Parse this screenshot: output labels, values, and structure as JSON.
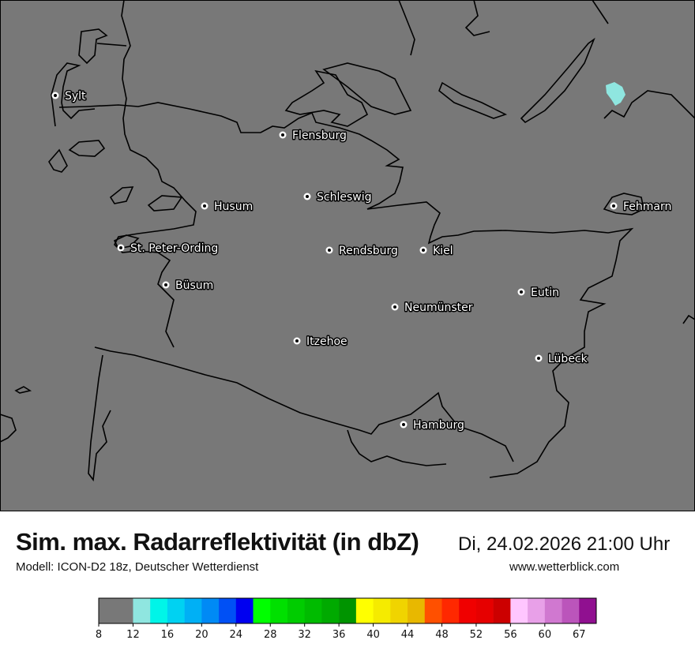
{
  "header": {
    "title": "Sim. max. Radarreflektivität (in dbZ)",
    "datetime": "Di, 24.02.2026 21:00 Uhr",
    "model": "Modell: ICON-D2 18z, Deutscher Wetterdienst",
    "website": "www.wetterblick.com"
  },
  "map": {
    "background_color": "#787878",
    "coast_color": "#000000",
    "cities": [
      {
        "name": "Sylt"
      },
      {
        "name": "Flensburg"
      },
      {
        "name": "Schleswig"
      },
      {
        "name": "Husum"
      },
      {
        "name": "Fehmarn"
      },
      {
        "name": "St. Peter-Ording"
      },
      {
        "name": "Rendsburg"
      },
      {
        "name": "Kiel"
      },
      {
        "name": "Büsum"
      },
      {
        "name": "Eutin"
      },
      {
        "name": "Neumünster"
      },
      {
        "name": "Itzehoe"
      },
      {
        "name": "Lübeck"
      },
      {
        "name": "Hamburg"
      }
    ],
    "echoes": [
      {
        "location": "near Fehmarn (north)",
        "dbz_range": "12-14"
      }
    ]
  },
  "colorbar": {
    "tick_labels": [
      "8",
      "12",
      "16",
      "20",
      "24",
      "28",
      "32",
      "36",
      "40",
      "44",
      "48",
      "52",
      "56",
      "60",
      "67"
    ],
    "bins": [
      {
        "from": 8,
        "color": "#787878"
      },
      {
        "from": 12,
        "color": "#8fe6e0"
      },
      {
        "from": 14,
        "color": "#00f5e8"
      },
      {
        "from": 16,
        "color": "#00d2f2"
      },
      {
        "from": 18,
        "color": "#00b0f5"
      },
      {
        "from": 20,
        "color": "#008af5"
      },
      {
        "from": 22,
        "color": "#0050f5"
      },
      {
        "from": 24,
        "color": "#0000f0"
      },
      {
        "from": 26,
        "color": "#00ff00"
      },
      {
        "from": 28,
        "color": "#00e000"
      },
      {
        "from": 30,
        "color": "#00cc00"
      },
      {
        "from": 32,
        "color": "#00bb00"
      },
      {
        "from": 34,
        "color": "#00aa00"
      },
      {
        "from": 36,
        "color": "#009400"
      },
      {
        "from": 38,
        "color": "#ffff00"
      },
      {
        "from": 40,
        "color": "#f5eb00"
      },
      {
        "from": 42,
        "color": "#f0d400"
      },
      {
        "from": 44,
        "color": "#e8b800"
      },
      {
        "from": 46,
        "color": "#ff5000"
      },
      {
        "from": 48,
        "color": "#ff2800"
      },
      {
        "from": 50,
        "color": "#f00000"
      },
      {
        "from": 52,
        "color": "#e60000"
      },
      {
        "from": 54,
        "color": "#cc0000"
      },
      {
        "from": 56,
        "color": "#ffc6ff"
      },
      {
        "from": 58,
        "color": "#e8a0e8"
      },
      {
        "from": 60,
        "color": "#d078d0"
      },
      {
        "from": 62,
        "color": "#bb55bb"
      },
      {
        "from": 64,
        "color": "#901090"
      }
    ]
  }
}
